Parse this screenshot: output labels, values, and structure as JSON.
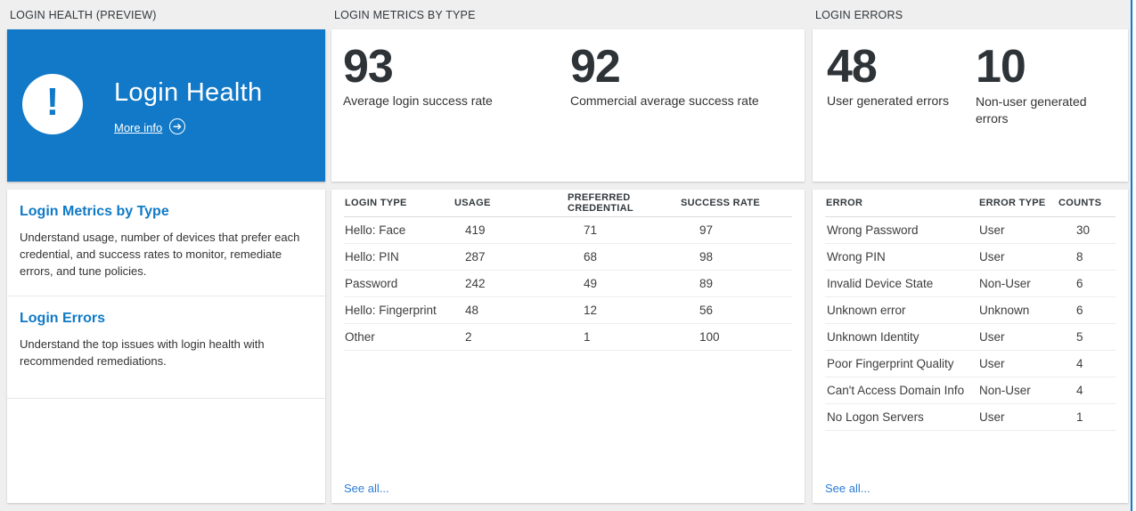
{
  "colors": {
    "accent_blue": "#1179c7",
    "heading_blue": "#0f7ac6",
    "link_blue": "#2b7bd6",
    "page_background": "#efefef",
    "card_background": "#ffffff",
    "number_text": "#2e3338"
  },
  "panels": {
    "health": {
      "header": "LOGIN HEALTH (PREVIEW)",
      "tile": {
        "title": "Login Health",
        "more_info_label": "More info",
        "icon": "exclamation-icon",
        "arrow_icon": "arrow-right-circle-icon"
      },
      "sections": [
        {
          "title": "Login Metrics by Type",
          "description": "Understand usage, number of devices that prefer each credential, and success rates to monitor, remediate errors, and tune policies."
        },
        {
          "title": "Login Errors",
          "description": "Understand the top issues with login health with recommended remediations."
        }
      ]
    },
    "metrics": {
      "header": "LOGIN METRICS BY TYPE",
      "stats": [
        {
          "value": "93",
          "label": "Average login success rate"
        },
        {
          "value": "92",
          "label": "Commercial average success rate"
        }
      ],
      "table": {
        "columns": [
          "LOGIN TYPE",
          "USAGE",
          "PREFERRED CREDENTIAL",
          "SUCCESS RATE"
        ],
        "rows": [
          [
            "Hello: Face",
            "419",
            "71",
            "97"
          ],
          [
            "Hello: PIN",
            "287",
            "68",
            "98"
          ],
          [
            "Password",
            "242",
            "49",
            "89"
          ],
          [
            "Hello: Fingerprint",
            "48",
            "12",
            "56"
          ],
          [
            "Other",
            "2",
            "1",
            "100"
          ]
        ]
      },
      "see_all_label": "See all..."
    },
    "errors": {
      "header": "LOGIN ERRORS",
      "stats": [
        {
          "value": "48",
          "label": "User generated errors"
        },
        {
          "value": "10",
          "label": "Non-user generated errors"
        }
      ],
      "table": {
        "columns": [
          "ERROR",
          "ERROR TYPE",
          "COUNTS"
        ],
        "rows": [
          [
            "Wrong Password",
            "User",
            "30"
          ],
          [
            "Wrong PIN",
            "User",
            "8"
          ],
          [
            "Invalid Device State",
            "Non-User",
            "6"
          ],
          [
            "Unknown error",
            "Unknown",
            "6"
          ],
          [
            "Unknown Identity",
            "User",
            "5"
          ],
          [
            "Poor Fingerprint Quality",
            "User",
            "4"
          ],
          [
            "Can't Access Domain Info",
            "Non-User",
            "4"
          ],
          [
            "No Logon Servers",
            "User",
            "1"
          ]
        ]
      },
      "see_all_label": "See all..."
    }
  }
}
